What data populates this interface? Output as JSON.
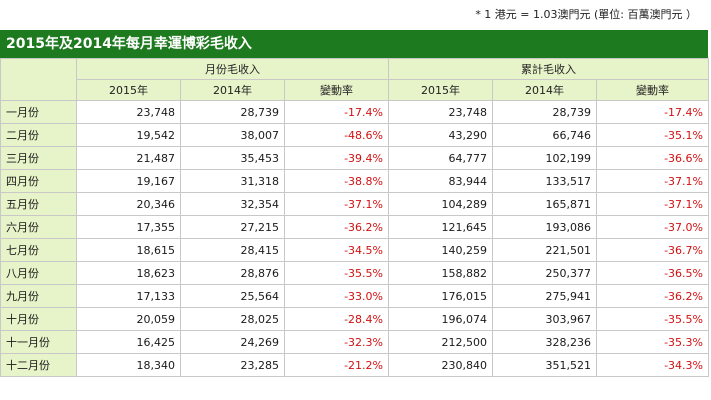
{
  "note": "* 1 港元 = 1.03澳門元 (單位: 百萬澳門元 ）",
  "title": "2015年及2014年每月幸運博彩毛收入",
  "group_headers": {
    "monthly": "月份毛收入",
    "cumulative": "累計毛收入"
  },
  "columns": [
    "2015年",
    "2014年",
    "變動率",
    "2015年",
    "2014年",
    "變動率"
  ],
  "rows": [
    {
      "month": "一月份",
      "m2015": "23,748",
      "m2014": "28,739",
      "mchg": "-17.4%",
      "c2015": "23,748",
      "c2014": "28,739",
      "cchg": "-17.4%"
    },
    {
      "month": "二月份",
      "m2015": "19,542",
      "m2014": "38,007",
      "mchg": "-48.6%",
      "c2015": "43,290",
      "c2014": "66,746",
      "cchg": "-35.1%"
    },
    {
      "month": "三月份",
      "m2015": "21,487",
      "m2014": "35,453",
      "mchg": "-39.4%",
      "c2015": "64,777",
      "c2014": "102,199",
      "cchg": "-36.6%"
    },
    {
      "month": "四月份",
      "m2015": "19,167",
      "m2014": "31,318",
      "mchg": "-38.8%",
      "c2015": "83,944",
      "c2014": "133,517",
      "cchg": "-37.1%"
    },
    {
      "month": "五月份",
      "m2015": "20,346",
      "m2014": "32,354",
      "mchg": "-37.1%",
      "c2015": "104,289",
      "c2014": "165,871",
      "cchg": "-37.1%"
    },
    {
      "month": "六月份",
      "m2015": "17,355",
      "m2014": "27,215",
      "mchg": "-36.2%",
      "c2015": "121,645",
      "c2014": "193,086",
      "cchg": "-37.0%"
    },
    {
      "month": "七月份",
      "m2015": "18,615",
      "m2014": "28,415",
      "mchg": "-34.5%",
      "c2015": "140,259",
      "c2014": "221,501",
      "cchg": "-36.7%"
    },
    {
      "month": "八月份",
      "m2015": "18,623",
      "m2014": "28,876",
      "mchg": "-35.5%",
      "c2015": "158,882",
      "c2014": "250,377",
      "cchg": "-36.5%"
    },
    {
      "month": "九月份",
      "m2015": "17,133",
      "m2014": "25,564",
      "mchg": "-33.0%",
      "c2015": "176,015",
      "c2014": "275,941",
      "cchg": "-36.2%"
    },
    {
      "month": "十月份",
      "m2015": "20,059",
      "m2014": "28,025",
      "mchg": "-28.4%",
      "c2015": "196,074",
      "c2014": "303,967",
      "cchg": "-35.5%"
    },
    {
      "month": "十一月份",
      "m2015": "16,425",
      "m2014": "24,269",
      "mchg": "-32.3%",
      "c2015": "212,500",
      "c2014": "328,236",
      "cchg": "-35.3%"
    },
    {
      "month": "十二月份",
      "m2015": "18,340",
      "m2014": "23,285",
      "mchg": "-21.2%",
      "c2015": "230,840",
      "c2014": "351,521",
      "cchg": "-34.3%"
    }
  ],
  "colors": {
    "title_bg": "#1e7a1e",
    "header_bg": "#e7f3c9",
    "negative_text": "#d21010"
  }
}
